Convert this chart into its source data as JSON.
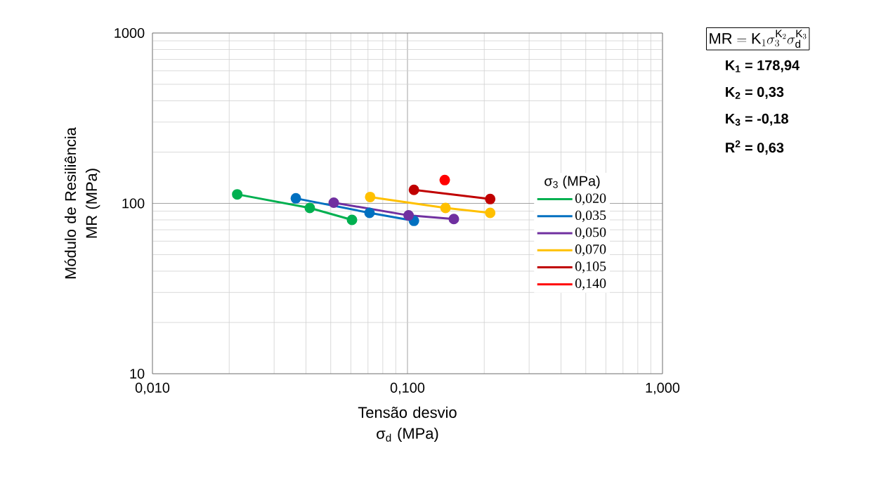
{
  "chart_data": {
    "type": "line",
    "xlabel": "Tensão desvio σ$_{d}$ (MPa)",
    "ylabel": "Módulo de Resiliência MR (MPa)",
    "legend_title": "σ$_{3}$ (MPa)",
    "log": "xy",
    "grid": true,
    "legend": "right",
    "marker": "circle",
    "xlim": [
      0.01,
      1
    ],
    "ylim": [
      10,
      1000
    ],
    "xticks": [
      {
        "value": 0.01,
        "label": "0,010"
      },
      {
        "value": 0.1,
        "label": "0,100"
      },
      {
        "value": 1,
        "label": "1,000"
      }
    ],
    "yticks": [
      10,
      100,
      1000
    ],
    "series": [
      {
        "name": "0,020",
        "color": "#00b050",
        "x": [
          0.0215,
          0.0414,
          0.0606
        ],
        "values": [
          113,
          94,
          80
        ]
      },
      {
        "name": "0,035",
        "color": "#0070c0",
        "x": [
          0.0365,
          0.071,
          0.106
        ],
        "values": [
          107,
          88,
          79
        ]
      },
      {
        "name": "0,050",
        "color": "#7030a0",
        "x": [
          0.0514,
          0.101,
          0.152
        ],
        "values": [
          101,
          85,
          81
        ]
      },
      {
        "name": "0,070",
        "color": "#ffc000",
        "x": [
          0.0714,
          0.141,
          0.211
        ],
        "values": [
          109,
          94,
          88
        ]
      },
      {
        "name": "0,105",
        "color": "#c00000",
        "x": [
          0.106,
          0.211
        ],
        "values": [
          120,
          106
        ]
      },
      {
        "name": "0,140",
        "color": "#ff0000",
        "x": [
          0.14
        ],
        "values": [
          137
        ]
      }
    ],
    "annotations": [
      "\\mathrm{MR}=\\mathrm{K}_1\\sigma_3^{\\mathrm{K}_2}\\sigma_\\mathrm{d}^{\\mathrm{K}_3}",
      "K$_{1}$ = 178,94",
      "K$_{2}$ = 0,33",
      "K$_{3}$ = -0,18",
      "R$^{2}$ = 0,63"
    ]
  }
}
